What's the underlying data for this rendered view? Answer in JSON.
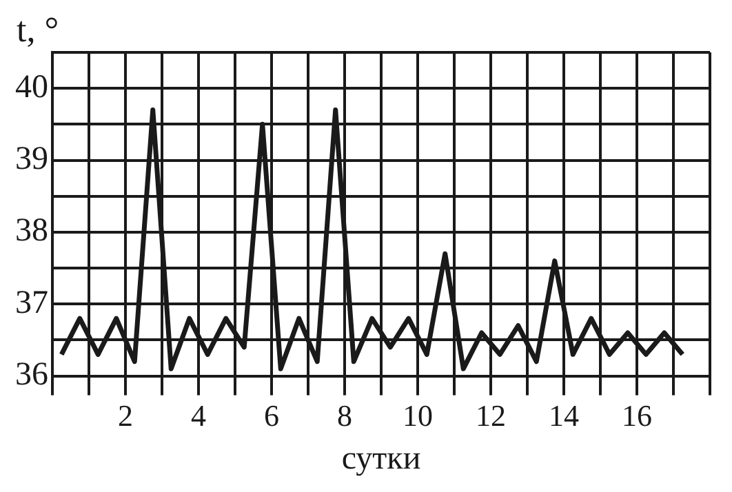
{
  "chart_data": {
    "type": "line",
    "xlabel": "сутки",
    "ylabel": "t, °",
    "x": [
      0.25,
      0.75,
      1.25,
      1.75,
      2.25,
      2.75,
      3.25,
      3.75,
      4.25,
      4.75,
      5.25,
      5.75,
      6.25,
      6.75,
      7.25,
      7.75,
      8.25,
      8.75,
      9.25,
      9.75,
      10.25,
      10.75,
      11.25,
      11.75,
      12.25,
      12.75,
      13.25,
      13.75,
      14.25,
      14.75,
      15.25,
      15.75,
      16.25,
      16.75,
      17.25
    ],
    "series": [
      {
        "color": "#1a1a1a",
        "values": [
          36.3,
          36.8,
          36.3,
          36.8,
          36.2,
          39.7,
          36.1,
          36.8,
          36.3,
          36.8,
          36.4,
          39.5,
          36.1,
          36.8,
          36.2,
          39.7,
          36.2,
          36.8,
          36.4,
          36.8,
          36.3,
          37.7,
          36.1,
          36.6,
          36.3,
          36.7,
          36.2,
          37.6,
          36.3,
          36.8,
          36.3,
          36.6,
          36.3,
          36.6,
          36.3
        ]
      }
    ],
    "xlim": [
      0,
      18
    ],
    "xticks": [
      {
        "value": 0,
        "label": null
      },
      {
        "value": 1,
        "label": null
      },
      2,
      {
        "value": 3,
        "label": null
      },
      4,
      {
        "value": 5,
        "label": null
      },
      6,
      {
        "value": 7,
        "label": null
      },
      8,
      {
        "value": 9,
        "label": null
      },
      10,
      {
        "value": 11,
        "label": null
      },
      12,
      {
        "value": 13,
        "label": null
      },
      14,
      {
        "value": 15,
        "label": null
      },
      16,
      {
        "value": 17,
        "label": null
      },
      {
        "value": 18,
        "label": null
      }
    ],
    "ylim": [
      36,
      40.5
    ],
    "yticks": [
      36,
      {
        "value": 36.5,
        "label": null
      },
      37,
      {
        "value": 37.5,
        "label": null
      },
      38,
      {
        "value": 38.5,
        "label": null
      },
      39,
      {
        "value": 39.5,
        "label": null
      },
      40,
      {
        "value": 40.5,
        "label": null
      }
    ],
    "grid": true,
    "legend": false,
    "marker": "none",
    "line_style": "solid"
  }
}
